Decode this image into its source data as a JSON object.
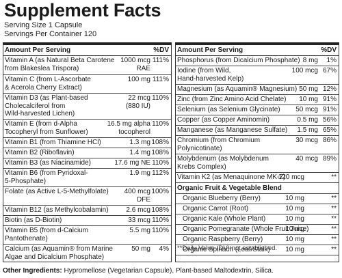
{
  "title": "Supplement Facts",
  "serving_size": "Serving Size 1 Capsule",
  "servings_per_container": "Servings Per Container 120",
  "header": {
    "amount": "Amount Per Serving",
    "dv": "%DV"
  },
  "left": [
    {
      "name": "Vitamin A (as Natural Beta Carotene",
      "name2": "from Blakeslea Trispora)",
      "amount": "1000 mcg",
      "amount2": "RAE",
      "dv": "111%",
      "h": 28
    },
    {
      "name": "Vitamin C (from L-Ascorbate",
      "name2": "& Acerola Cherry Extract)",
      "amount": "100 mg",
      "dv": "111%",
      "h": 27
    },
    {
      "name": "Vitamin D3 (as Plant-based",
      "name2": "Cholecalciferol from",
      "name3": "Wild-harvested Lichen)",
      "amount": "22 mcg",
      "amount2": "(880 IU)",
      "dv": "110%",
      "h": 38
    },
    {
      "name": "Vitamin E (from d-Alpha",
      "name2": "Tocopheryl from Sunflower)",
      "amount": "16.5 mg alpha",
      "amount2": "tocopherol",
      "dv": "110%",
      "h": 27
    },
    {
      "name": "Vitamin B1 (from Thiamine HCl)",
      "amount": "1.3 mg",
      "dv": "108%",
      "h": 15
    },
    {
      "name": "Vitamin B2 (Riboflavin)",
      "amount": "1.4 mg",
      "dv": "108%",
      "h": 15
    },
    {
      "name": "Vitamin B3 (as Niacinamide)",
      "amount": "17.6 mg NE",
      "dv": "110%",
      "h": 15
    },
    {
      "name": "Vitamin B6 (from Pyridoxal-",
      "name2": "5-Phosphate)",
      "amount": "1.9 mg",
      "dv": "112%",
      "h": 27
    },
    {
      "name": "Folate (as Active L-5-Methylfolate)",
      "amount": "400 mcg",
      "amount2": "DFE",
      "dv": "100%",
      "h": 27
    },
    {
      "name": "Vitamin B12 (as Methylcobalamin)",
      "amount": "2.6 mcg",
      "dv": "108%",
      "h": 15
    },
    {
      "name": "Biotin (as D-Biotin)",
      "amount": "33 mcg",
      "dv": "110%",
      "h": 15
    },
    {
      "name": "Vitamin B5 (from d-Calcium",
      "name2": "Pantothenate)",
      "amount": "5.5 mg",
      "dv": "110%",
      "h": 27
    },
    {
      "name": "Calcium (as Aquamin® from Marine",
      "name2": "Algae and Dicalcium Phosphate)",
      "amount": "50 mg",
      "dv": "4%",
      "h": 27
    }
  ],
  "right": [
    {
      "name": "Phosphorus (from Dicalcium Phosphate)",
      "amount": "8 mg",
      "dv": "1%",
      "h": 15
    },
    {
      "name": "Iodine (from Wild,",
      "name2": "Hand-harvested Kelp)",
      "amount": "100 mcg",
      "dv": "67%",
      "h": 27
    },
    {
      "name": "Magnesium (as Aquamin® Magnesium)",
      "amount": "50 mg",
      "dv": "12%",
      "h": 15
    },
    {
      "name": "Zinc (from Zinc Amino Acid Chelate)",
      "amount": "10 mg",
      "dv": "91%",
      "h": 15
    },
    {
      "name": "Selenium (as Selenium Glycinate)",
      "amount": "50 mcg",
      "dv": "91%",
      "h": 15
    },
    {
      "name": "Copper (as Copper Aminomin)",
      "amount": "0.5 mg",
      "dv": "56%",
      "h": 15
    },
    {
      "name": "Manganese (as Manganese Sulfate)",
      "amount": "1.5 mg",
      "dv": "65%",
      "h": 15
    },
    {
      "name": "Chromium (from Chromium",
      "name2": "Polynicotinate)",
      "amount": "30 mcg",
      "dv": "86%",
      "h": 27
    },
    {
      "name": "Molybdenum (as Molybdenum",
      "name2": "Krebs Complex)",
      "amount": "40 mcg",
      "dv": "89%",
      "h": 27
    }
  ],
  "vitamin_k2": {
    "name": "Vitamin K2 (as Menaquinone MK-7)",
    "amount": "120 mcg",
    "dv": "**"
  },
  "blend": {
    "title": "Organic Fruit & Vegetable Blend",
    "items": [
      {
        "name": "Organic Blueberry (Berry)",
        "amount": "10 mg",
        "dv": "**"
      },
      {
        "name": "Organic Carrot (Root)",
        "amount": "10 mg",
        "dv": "**"
      },
      {
        "name": "Organic Kale (Whole Plant)",
        "amount": "10 mg",
        "dv": "**"
      },
      {
        "name": "Organic Pomegranate (Whole Fruit Juice)",
        "amount": "10 mg",
        "dv": "**"
      },
      {
        "name": "Organic Raspberry (Berry)",
        "amount": "10 mg",
        "dv": "**"
      },
      {
        "name": "Organic  Spinach (Leaf/Stalk)",
        "amount": "10 mg",
        "dv": "**"
      }
    ]
  },
  "footnote": "**Daily Value (DV) not established.",
  "other_label": "Other Ingredients:",
  "other_text": " Hypromellose (Vegetarian Capsule), Plant-based Maltodextrin, Silica."
}
